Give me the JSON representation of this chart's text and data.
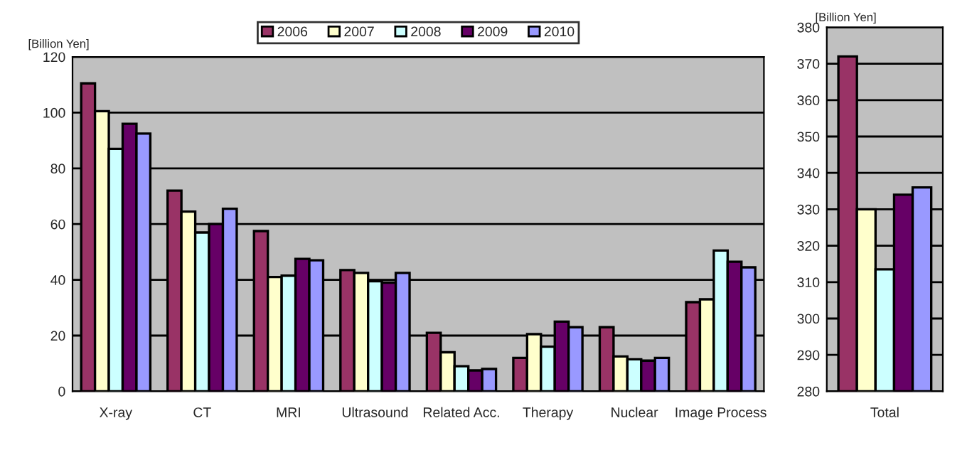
{
  "chart_data": [
    {
      "type": "bar",
      "ylabel": "[Billion Yen]",
      "categories": [
        "X-ray",
        "CT",
        "MRI",
        "Ultrasound",
        "Related Acc.",
        "Therapy",
        "Nuclear",
        "Image Process"
      ],
      "series": [
        {
          "name": "2006",
          "color": "#993366",
          "values": [
            110.5,
            72,
            57.5,
            43.5,
            21,
            12,
            23,
            32
          ]
        },
        {
          "name": "2007",
          "color": "#ffffcc",
          "values": [
            100.5,
            64.5,
            41,
            42.5,
            14,
            20.5,
            12.5,
            33
          ]
        },
        {
          "name": "2008",
          "color": "#ccffff",
          "values": [
            87,
            57,
            41.5,
            39.5,
            9,
            16,
            11.5,
            50.5
          ]
        },
        {
          "name": "2009",
          "color": "#660066",
          "values": [
            96,
            60,
            47.5,
            39,
            7.5,
            25,
            11,
            46.5
          ]
        },
        {
          "name": "2010",
          "color": "#9999ff",
          "values": [
            92.5,
            65.5,
            47,
            42.5,
            8,
            23,
            12,
            44.5
          ]
        }
      ],
      "ylim": [
        0,
        120
      ],
      "yticks": [
        0,
        20,
        40,
        60,
        80,
        100,
        120
      ],
      "grid": "y",
      "legend": "top"
    },
    {
      "type": "bar",
      "ylabel": "[Billion Yen]",
      "categories": [
        "Total"
      ],
      "series": [
        {
          "color": "#993366",
          "values": [
            372
          ]
        },
        {
          "color": "#ffffcc",
          "values": [
            330
          ]
        },
        {
          "color": "#ccffff",
          "values": [
            313.5
          ]
        },
        {
          "color": "#660066",
          "values": [
            334
          ]
        },
        {
          "color": "#9999ff",
          "values": [
            336
          ]
        }
      ],
      "ylim": [
        280,
        380
      ],
      "yticks": [
        280,
        290,
        300,
        310,
        320,
        330,
        340,
        350,
        360,
        370,
        380
      ],
      "grid": "y"
    }
  ]
}
